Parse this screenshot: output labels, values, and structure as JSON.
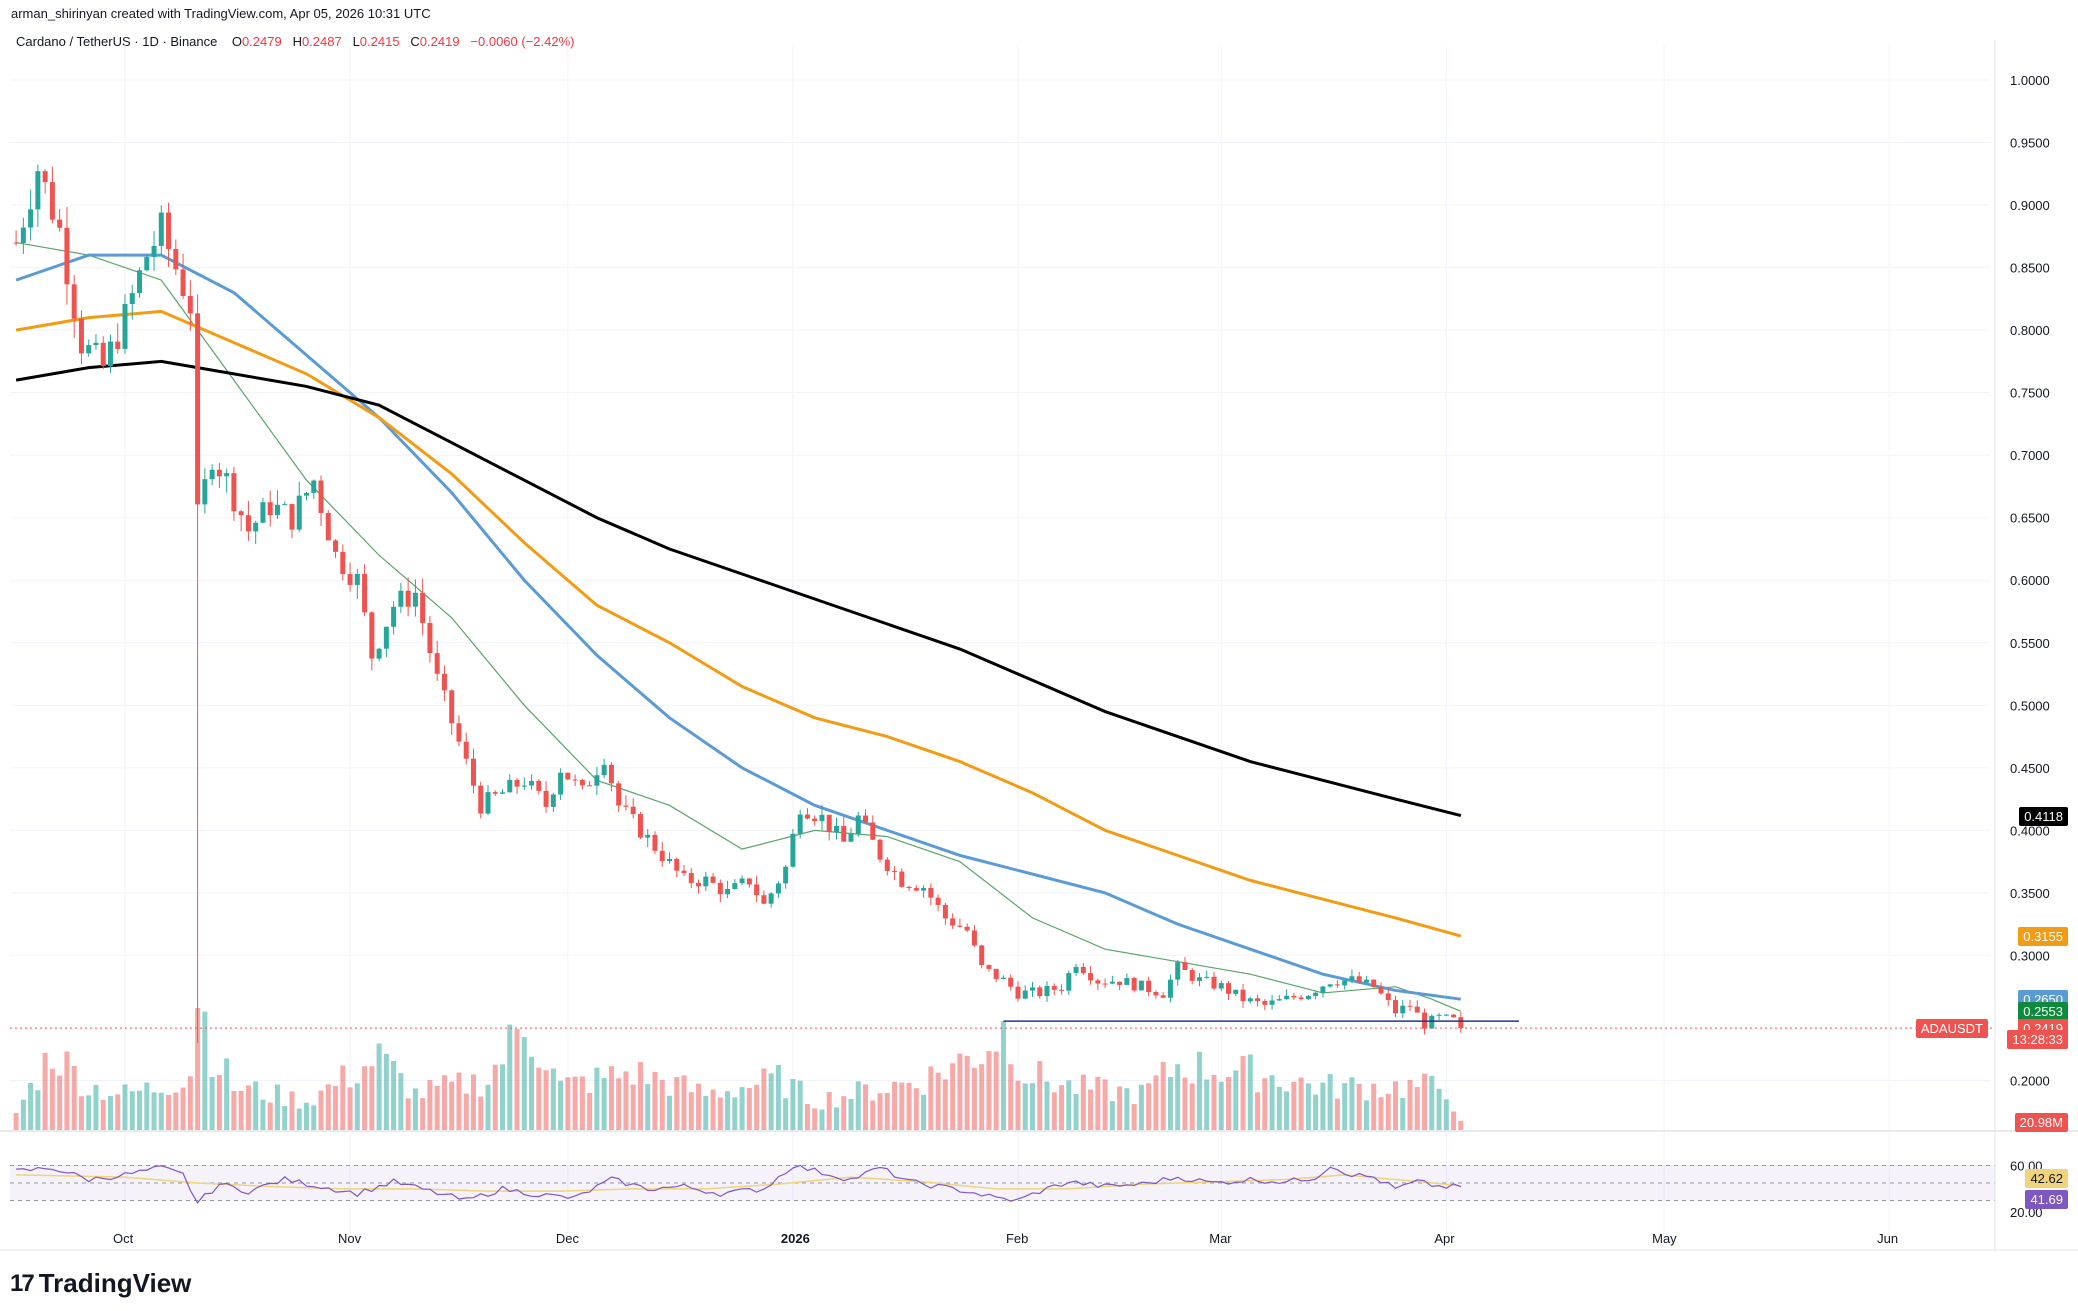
{
  "header": {
    "created_line": "arman_shirinyan created with TradingView.com, Apr 05, 2026 10:31 UTC",
    "symbol": "Cardano / TetherUS · 1D · Binance",
    "ohlc": [
      {
        "label": "O",
        "value": "0.2479"
      },
      {
        "label": "H",
        "value": "0.2487"
      },
      {
        "label": "L",
        "value": "0.2415"
      },
      {
        "label": "C",
        "value": "0.2419"
      }
    ],
    "change": "−0.0060 (−2.42%)"
  },
  "brand": {
    "mark": "17",
    "name": "TradingView"
  },
  "price_labels": {
    "ma200": "0.4118",
    "ma100": "0.3155",
    "ma50": "0.2650",
    "ma20": "0.2553",
    "ticker": "ADAUSDT",
    "last": "0.2419",
    "countdown": "13:28:33",
    "volume": "20.98M",
    "rsi_ma": "42.62",
    "rsi": "41.69"
  },
  "colors": {
    "up": "#26a69a",
    "down": "#ef5350",
    "ma20": "#5aa469",
    "ma50": "#5b9bd5",
    "ma100": "#f29b13",
    "ma200": "#000000",
    "support": "#1e3a8a",
    "rsi": "#7e57c2",
    "rsi_ma": "#f0d37a"
  },
  "chart_data": {
    "type": "candlestick",
    "y_axis": {
      "ticks": [
        "1.0000",
        "0.9500",
        "0.9000",
        "0.8500",
        "0.8000",
        "0.7500",
        "0.7000",
        "0.6500",
        "0.6000",
        "0.5500",
        "0.5000",
        "0.4500",
        "0.4000",
        "0.3500",
        "0.3000",
        "0.2000"
      ],
      "ylim": [
        0.17,
        1.02
      ]
    },
    "x_axis": {
      "labels": [
        {
          "text": "Oct",
          "day": 0
        },
        {
          "text": "Nov",
          "day": 31
        },
        {
          "text": "Dec",
          "day": 61
        },
        {
          "text": "2026",
          "day": 92
        },
        {
          "text": "Feb",
          "day": 123
        },
        {
          "text": "Mar",
          "day": 151
        },
        {
          "text": "Apr",
          "day": 182
        },
        {
          "text": "May",
          "day": 212
        },
        {
          "text": "Jun",
          "day": 243
        }
      ]
    },
    "rsi_panel": {
      "levels": [
        "60.00",
        "20.00"
      ],
      "ylim": [
        15,
        75
      ]
    },
    "support_level": 0.2475,
    "last_price": 0.2419,
    "moving_averages": [
      {
        "name": "MA20",
        "points": [
          [
            -15,
            0.87
          ],
          [
            -5,
            0.86
          ],
          [
            5,
            0.84
          ],
          [
            15,
            0.76
          ],
          [
            25,
            0.68
          ],
          [
            35,
            0.62
          ],
          [
            45,
            0.57
          ],
          [
            55,
            0.5
          ],
          [
            65,
            0.44
          ],
          [
            75,
            0.42
          ],
          [
            85,
            0.385
          ],
          [
            95,
            0.4
          ],
          [
            105,
            0.395
          ],
          [
            115,
            0.375
          ],
          [
            125,
            0.33
          ],
          [
            135,
            0.305
          ],
          [
            145,
            0.295
          ],
          [
            155,
            0.285
          ],
          [
            165,
            0.27
          ],
          [
            175,
            0.275
          ],
          [
            180,
            0.265
          ],
          [
            184,
            0.2553
          ]
        ]
      },
      {
        "name": "MA50",
        "points": [
          [
            -15,
            0.84
          ],
          [
            -5,
            0.86
          ],
          [
            5,
            0.86
          ],
          [
            15,
            0.83
          ],
          [
            25,
            0.78
          ],
          [
            35,
            0.73
          ],
          [
            45,
            0.67
          ],
          [
            55,
            0.6
          ],
          [
            65,
            0.54
          ],
          [
            75,
            0.49
          ],
          [
            85,
            0.45
          ],
          [
            95,
            0.42
          ],
          [
            105,
            0.4
          ],
          [
            115,
            0.38
          ],
          [
            125,
            0.365
          ],
          [
            135,
            0.35
          ],
          [
            145,
            0.325
          ],
          [
            155,
            0.305
          ],
          [
            165,
            0.285
          ],
          [
            175,
            0.272
          ],
          [
            184,
            0.265
          ]
        ]
      },
      {
        "name": "MA100",
        "points": [
          [
            -15,
            0.8
          ],
          [
            -5,
            0.81
          ],
          [
            5,
            0.815
          ],
          [
            15,
            0.79
          ],
          [
            25,
            0.765
          ],
          [
            35,
            0.73
          ],
          [
            45,
            0.685
          ],
          [
            55,
            0.63
          ],
          [
            65,
            0.58
          ],
          [
            75,
            0.55
          ],
          [
            85,
            0.515
          ],
          [
            95,
            0.49
          ],
          [
            105,
            0.475
          ],
          [
            115,
            0.455
          ],
          [
            125,
            0.43
          ],
          [
            135,
            0.4
          ],
          [
            145,
            0.38
          ],
          [
            155,
            0.36
          ],
          [
            165,
            0.345
          ],
          [
            175,
            0.33
          ],
          [
            184,
            0.3155
          ]
        ]
      },
      {
        "name": "MA200",
        "points": [
          [
            -15,
            0.76
          ],
          [
            -5,
            0.77
          ],
          [
            5,
            0.775
          ],
          [
            15,
            0.765
          ],
          [
            25,
            0.755
          ],
          [
            35,
            0.74
          ],
          [
            45,
            0.71
          ],
          [
            55,
            0.68
          ],
          [
            65,
            0.65
          ],
          [
            75,
            0.625
          ],
          [
            85,
            0.605
          ],
          [
            95,
            0.585
          ],
          [
            105,
            0.565
          ],
          [
            115,
            0.545
          ],
          [
            125,
            0.52
          ],
          [
            135,
            0.495
          ],
          [
            145,
            0.475
          ],
          [
            155,
            0.455
          ],
          [
            165,
            0.44
          ],
          [
            175,
            0.425
          ],
          [
            184,
            0.4118
          ]
        ]
      }
    ],
    "price_path": [
      [
        -15,
        0.87
      ],
      [
        -12,
        0.93
      ],
      [
        -9,
        0.88
      ],
      [
        -6,
        0.79
      ],
      [
        -3,
        0.77
      ],
      [
        0,
        0.81
      ],
      [
        3,
        0.86
      ],
      [
        5,
        0.88
      ],
      [
        7,
        0.85
      ],
      [
        9,
        0.82
      ],
      [
        10,
        0.65
      ],
      [
        12,
        0.7
      ],
      [
        14,
        0.68
      ],
      [
        17,
        0.64
      ],
      [
        20,
        0.66
      ],
      [
        23,
        0.65
      ],
      [
        26,
        0.68
      ],
      [
        29,
        0.62
      ],
      [
        32,
        0.6
      ],
      [
        34,
        0.54
      ],
      [
        37,
        0.58
      ],
      [
        40,
        0.59
      ],
      [
        43,
        0.52
      ],
      [
        46,
        0.47
      ],
      [
        49,
        0.42
      ],
      [
        52,
        0.43
      ],
      [
        55,
        0.44
      ],
      [
        58,
        0.42
      ],
      [
        60,
        0.45
      ],
      [
        63,
        0.43
      ],
      [
        66,
        0.46
      ],
      [
        68,
        0.42
      ],
      [
        71,
        0.4
      ],
      [
        74,
        0.38
      ],
      [
        77,
        0.36
      ],
      [
        80,
        0.36
      ],
      [
        83,
        0.35
      ],
      [
        86,
        0.36
      ],
      [
        88,
        0.34
      ],
      [
        91,
        0.37
      ],
      [
        93,
        0.42
      ],
      [
        96,
        0.41
      ],
      [
        99,
        0.39
      ],
      [
        101,
        0.41
      ],
      [
        104,
        0.38
      ],
      [
        107,
        0.36
      ],
      [
        110,
        0.355
      ],
      [
        113,
        0.33
      ],
      [
        116,
        0.32
      ],
      [
        118,
        0.29
      ],
      [
        121,
        0.28
      ],
      [
        123,
        0.27
      ],
      [
        126,
        0.27
      ],
      [
        129,
        0.275
      ],
      [
        131,
        0.295
      ],
      [
        134,
        0.28
      ],
      [
        137,
        0.28
      ],
      [
        140,
        0.275
      ],
      [
        143,
        0.27
      ],
      [
        145,
        0.29
      ],
      [
        148,
        0.28
      ],
      [
        151,
        0.275
      ],
      [
        154,
        0.265
      ],
      [
        157,
        0.26
      ],
      [
        160,
        0.265
      ],
      [
        163,
        0.27
      ],
      [
        166,
        0.28
      ],
      [
        169,
        0.28
      ],
      [
        172,
        0.275
      ],
      [
        175,
        0.255
      ],
      [
        177,
        0.26
      ],
      [
        179,
        0.245
      ],
      [
        181,
        0.25
      ],
      [
        183,
        0.248
      ],
      [
        184,
        0.2419
      ]
    ],
    "volume_path": [
      [
        -15,
        0.12
      ],
      [
        -10,
        0.55
      ],
      [
        -5,
        0.3
      ],
      [
        0,
        0.25
      ],
      [
        5,
        0.3
      ],
      [
        9,
        0.4
      ],
      [
        10,
        1.0
      ],
      [
        12,
        0.55
      ],
      [
        15,
        0.3
      ],
      [
        20,
        0.25
      ],
      [
        25,
        0.2
      ],
      [
        30,
        0.35
      ],
      [
        35,
        0.5
      ],
      [
        40,
        0.25
      ],
      [
        50,
        0.35
      ],
      [
        55,
        0.75
      ],
      [
        60,
        0.3
      ],
      [
        70,
        0.4
      ],
      [
        80,
        0.25
      ],
      [
        90,
        0.35
      ],
      [
        95,
        0.2
      ],
      [
        110,
        0.35
      ],
      [
        118,
        0.55
      ],
      [
        121,
        0.7
      ],
      [
        124,
        0.4
      ],
      [
        130,
        0.3
      ],
      [
        140,
        0.25
      ],
      [
        145,
        0.45
      ],
      [
        155,
        0.4
      ],
      [
        165,
        0.3
      ],
      [
        175,
        0.3
      ],
      [
        182,
        0.3
      ],
      [
        184,
        0.05
      ]
    ],
    "rsi_path": [
      [
        -15,
        55
      ],
      [
        -10,
        58
      ],
      [
        -5,
        48
      ],
      [
        0,
        52
      ],
      [
        5,
        58
      ],
      [
        8,
        52
      ],
      [
        10,
        28
      ],
      [
        13,
        44
      ],
      [
        17,
        38
      ],
      [
        22,
        48
      ],
      [
        27,
        42
      ],
      [
        32,
        36
      ],
      [
        37,
        46
      ],
      [
        42,
        38
      ],
      [
        47,
        30
      ],
      [
        52,
        40
      ],
      [
        57,
        35
      ],
      [
        62,
        32
      ],
      [
        67,
        48
      ],
      [
        72,
        40
      ],
      [
        77,
        42
      ],
      [
        82,
        36
      ],
      [
        88,
        40
      ],
      [
        92,
        60
      ],
      [
        96,
        54
      ],
      [
        100,
        48
      ],
      [
        104,
        58
      ],
      [
        108,
        46
      ],
      [
        112,
        42
      ],
      [
        116,
        38
      ],
      [
        120,
        32
      ],
      [
        123,
        30
      ],
      [
        126,
        38
      ],
      [
        130,
        46
      ],
      [
        135,
        42
      ],
      [
        140,
        44
      ],
      [
        145,
        50
      ],
      [
        150,
        45
      ],
      [
        155,
        48
      ],
      [
        160,
        46
      ],
      [
        164,
        50
      ],
      [
        166,
        60
      ],
      [
        169,
        52
      ],
      [
        172,
        50
      ],
      [
        175,
        40
      ],
      [
        178,
        46
      ],
      [
        181,
        42
      ],
      [
        184,
        41.69
      ]
    ],
    "rsi_ma_path": [
      [
        -15,
        52
      ],
      [
        0,
        50
      ],
      [
        10,
        45
      ],
      [
        20,
        42
      ],
      [
        30,
        40
      ],
      [
        40,
        40
      ],
      [
        50,
        38
      ],
      [
        60,
        38
      ],
      [
        70,
        40
      ],
      [
        80,
        40
      ],
      [
        90,
        44
      ],
      [
        100,
        50
      ],
      [
        110,
        46
      ],
      [
        120,
        40
      ],
      [
        130,
        40
      ],
      [
        140,
        44
      ],
      [
        150,
        46
      ],
      [
        160,
        48
      ],
      [
        168,
        52
      ],
      [
        175,
        48
      ],
      [
        184,
        42.62
      ]
    ]
  }
}
